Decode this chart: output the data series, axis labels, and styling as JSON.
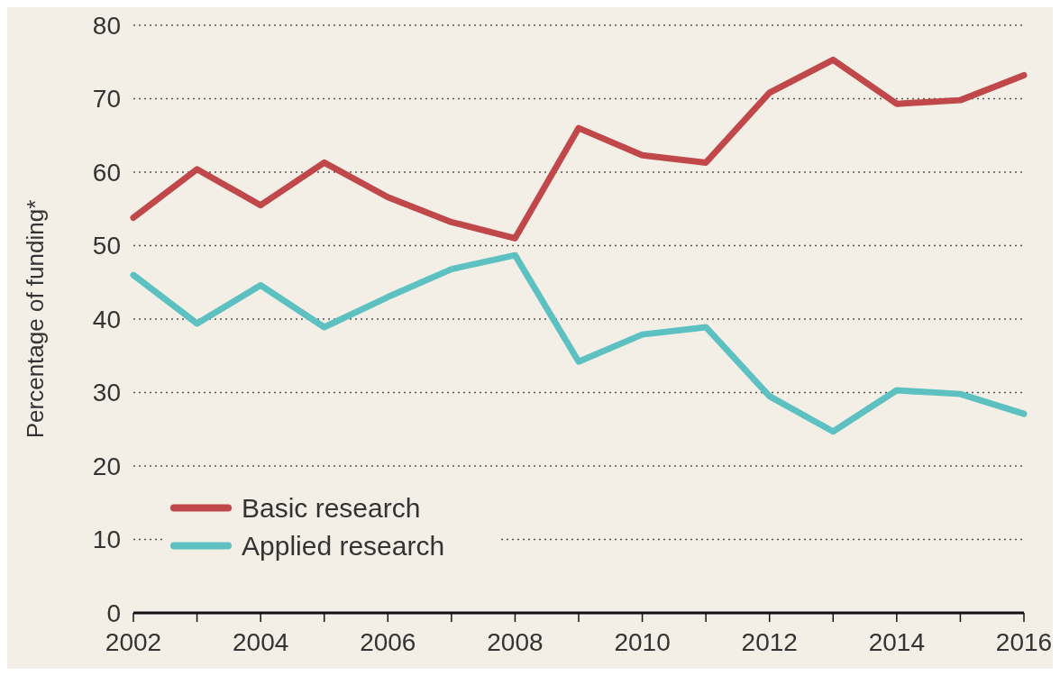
{
  "chart_data": {
    "type": "line",
    "ylabel": "Percentage of funding*",
    "x": [
      2002,
      2003,
      2004,
      2005,
      2006,
      2007,
      2008,
      2009,
      2010,
      2011,
      2012,
      2013,
      2014,
      2015,
      2016
    ],
    "series": [
      {
        "name": "Basic research",
        "color": "#c0474a",
        "values": [
          53.8,
          60.4,
          55.5,
          61.3,
          56.6,
          53.2,
          51,
          66,
          62.3,
          61.3,
          70.8,
          75.3,
          69.3,
          69.8,
          73.2
        ]
      },
      {
        "name": "Applied research",
        "color": "#5cc1c0",
        "values": [
          46,
          39.4,
          44.6,
          38.9,
          43,
          46.8,
          48.7,
          34.2,
          37.9,
          38.9,
          29.5,
          24.7,
          30.3,
          29.8,
          27.1
        ]
      }
    ],
    "xlim": [
      2002,
      2016
    ],
    "xticks": [
      2002,
      {
        "value": 2003,
        "label": null
      },
      2004,
      {
        "value": 2005,
        "label": null
      },
      2006,
      {
        "value": 2007,
        "label": null
      },
      2008,
      {
        "value": 2009,
        "label": null
      },
      2010,
      {
        "value": 2011,
        "label": null
      },
      2012,
      {
        "value": 2013,
        "label": null
      },
      2014,
      {
        "value": 2015,
        "label": null
      },
      2016
    ],
    "ylim": [
      0,
      80
    ],
    "yticks": [
      0,
      10,
      20,
      30,
      40,
      50,
      60,
      70,
      80
    ],
    "grid": "y",
    "legend": "bottom left",
    "marker": "none",
    "line_style": "solid"
  }
}
